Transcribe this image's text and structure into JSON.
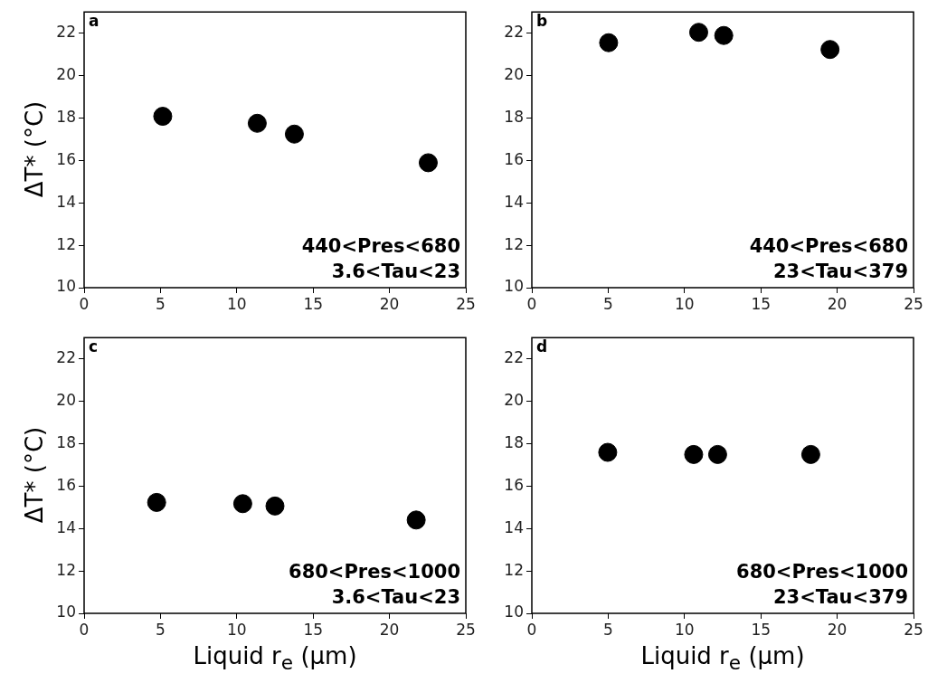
{
  "chart_data": [
    {
      "type": "scatter",
      "ylabel": "ΔT* (°C)",
      "xlim": [
        0,
        25
      ],
      "xticks": [
        0,
        5,
        10,
        15,
        20,
        25
      ],
      "ylim": [
        10,
        23
      ],
      "yticks": [
        10,
        12,
        14,
        16,
        18,
        20,
        22
      ],
      "marker": "circle",
      "annotations": [
        "a",
        "440<Pres<680",
        "3.6<Tau<23"
      ],
      "series": [
        {
          "color": "#000000",
          "x": [
            5.15,
            11.34,
            13.77,
            22.54
          ],
          "values": [
            18.08,
            17.75,
            17.24,
            15.89
          ]
        }
      ]
    },
    {
      "type": "scatter",
      "xlim": [
        0,
        25
      ],
      "xticks": [
        0,
        5,
        10,
        15,
        20,
        25
      ],
      "ylim": [
        10,
        23
      ],
      "yticks": [
        10,
        12,
        14,
        16,
        18,
        20,
        22
      ],
      "marker": "circle",
      "annotations": [
        "b",
        "440<Pres<680",
        "23<Tau<379"
      ],
      "series": [
        {
          "color": "#000000",
          "x": [
            5.03,
            10.93,
            12.57,
            19.53
          ],
          "values": [
            21.55,
            22.04,
            21.89,
            21.23
          ]
        }
      ]
    },
    {
      "type": "scatter",
      "xlabel": "Liquid r$_{e}$ (μm)",
      "ylabel": "ΔT* (°C)",
      "xlim": [
        0,
        25
      ],
      "xticks": [
        0,
        5,
        10,
        15,
        20,
        25
      ],
      "ylim": [
        10,
        23
      ],
      "yticks": [
        10,
        12,
        14,
        16,
        18,
        20,
        22
      ],
      "marker": "circle",
      "annotations": [
        "c",
        "680<Pres<1000",
        "3.6<Tau<23"
      ],
      "series": [
        {
          "color": "#000000",
          "x": [
            4.75,
            10.39,
            12.5,
            21.75
          ],
          "values": [
            15.23,
            15.17,
            15.06,
            14.4
          ]
        }
      ]
    },
    {
      "type": "scatter",
      "xlabel": "Liquid r$_{e}$ (μm)",
      "xlim": [
        0,
        25
      ],
      "xticks": [
        0,
        5,
        10,
        15,
        20,
        25
      ],
      "ylim": [
        10,
        23
      ],
      "yticks": [
        10,
        12,
        14,
        16,
        18,
        20,
        22
      ],
      "marker": "circle",
      "annotations": [
        "d",
        "680<Pres<1000",
        "23<Tau<379"
      ],
      "series": [
        {
          "color": "#000000",
          "x": [
            4.97,
            10.6,
            12.17,
            18.27
          ],
          "values": [
            17.59,
            17.49,
            17.49,
            17.49
          ]
        }
      ]
    }
  ]
}
